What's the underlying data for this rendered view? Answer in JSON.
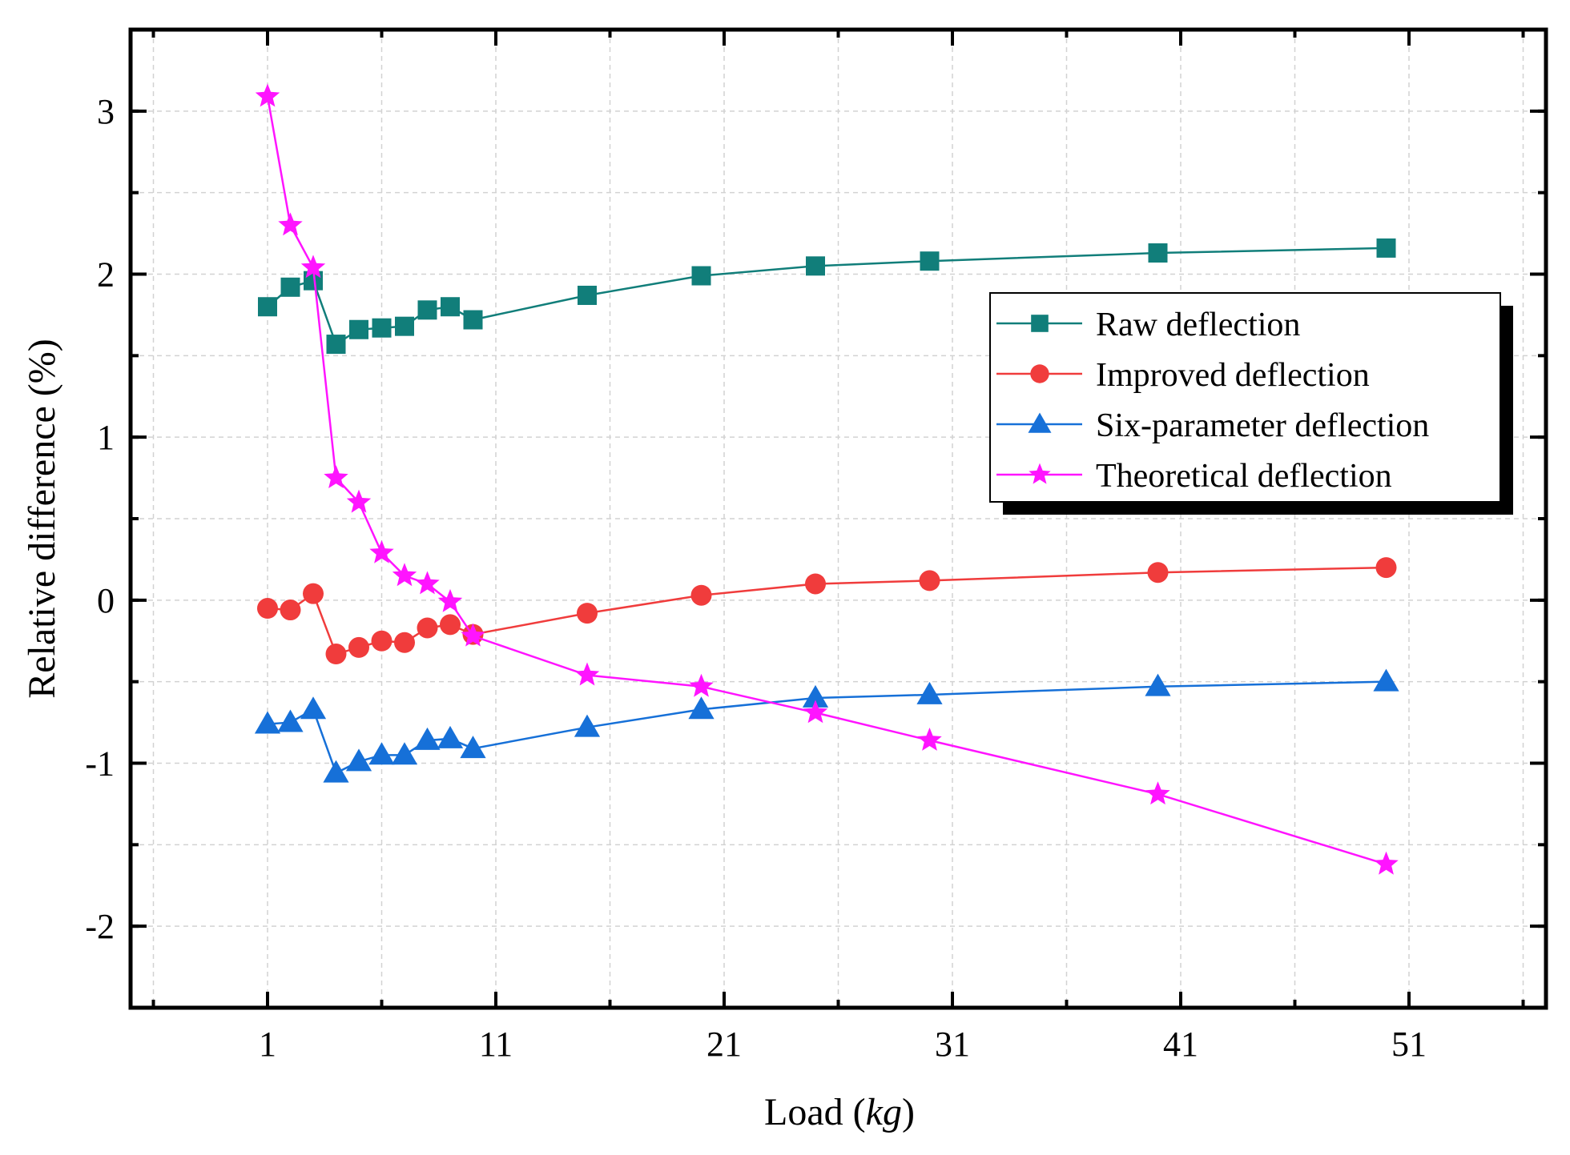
{
  "chart_data": {
    "type": "line",
    "title": "",
    "xlabel_prefix": "Load (",
    "xlabel_unit": "kg",
    "xlabel_suffix": ")",
    "ylabel": "Relative difference (%)",
    "xlim": [
      -5,
      57
    ],
    "ylim": [
      -2.5,
      3.5
    ],
    "x_ticks": [
      1,
      11,
      21,
      31,
      41,
      51
    ],
    "x_tick_labels": [
      "1",
      "11",
      "21",
      "31",
      "41",
      "51"
    ],
    "y_ticks": [
      -2,
      -1,
      0,
      1,
      2,
      3
    ],
    "y_tick_labels": [
      "-2",
      "-1",
      "0",
      "1",
      "2",
      "3"
    ],
    "grid": true,
    "legend_position": "upper-right",
    "x": [
      1,
      2,
      3,
      4,
      5,
      6,
      7,
      8,
      9,
      10,
      15,
      20,
      25,
      30,
      40,
      50
    ],
    "series": [
      {
        "name": "Raw deflection",
        "color": "#117e7a",
        "marker": "square",
        "values": [
          1.8,
          1.92,
          1.96,
          1.57,
          1.66,
          1.67,
          1.68,
          1.78,
          1.8,
          1.72,
          1.87,
          1.99,
          2.05,
          2.08,
          2.13,
          2.16
        ]
      },
      {
        "name": "Improved deflection",
        "color": "#f03c3c",
        "marker": "circle",
        "values": [
          -0.05,
          -0.06,
          0.04,
          -0.33,
          -0.29,
          -0.25,
          -0.26,
          -0.17,
          -0.15,
          -0.21,
          -0.08,
          0.03,
          0.1,
          0.12,
          0.17,
          0.2
        ]
      },
      {
        "name": "Six-parameter deflection",
        "color": "#1670d8",
        "marker": "triangle",
        "values": [
          -0.76,
          -0.75,
          -0.67,
          -1.06,
          -0.99,
          -0.95,
          -0.95,
          -0.86,
          -0.85,
          -0.91,
          -0.78,
          -0.67,
          -0.6,
          -0.58,
          -0.53,
          -0.5
        ]
      },
      {
        "name": "Theoretical deflection",
        "color": "#ff14ff",
        "marker": "star",
        "values": [
          3.09,
          2.3,
          2.04,
          0.75,
          0.6,
          0.29,
          0.15,
          0.1,
          -0.01,
          -0.22,
          -0.46,
          -0.53,
          -0.69,
          -0.86,
          -1.19,
          -1.62
        ]
      }
    ]
  }
}
